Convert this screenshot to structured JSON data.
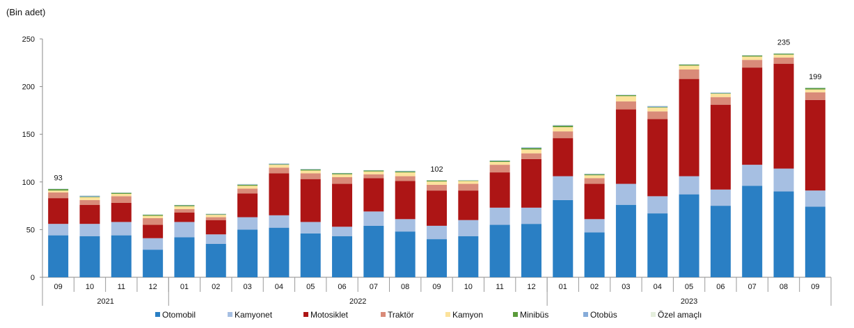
{
  "chart_data": {
    "type": "bar",
    "stacked": true,
    "unit_label": "(Bin adet)",
    "ylim": [
      0,
      250
    ],
    "yticks": [
      0,
      50,
      100,
      150,
      200,
      250
    ],
    "categories": [
      "09",
      "10",
      "11",
      "12",
      "01",
      "02",
      "03",
      "04",
      "05",
      "06",
      "07",
      "08",
      "09",
      "10",
      "11",
      "12",
      "01",
      "02",
      "03",
      "04",
      "05",
      "06",
      "07",
      "08",
      "09"
    ],
    "year_groups": [
      {
        "label": "2021",
        "count": 4
      },
      {
        "label": "2022",
        "count": 12
      },
      {
        "label": "2023",
        "count": 9
      }
    ],
    "series": [
      {
        "name": "Otomobil",
        "color": "#2a7fc4",
        "values": [
          44,
          43,
          44,
          29,
          42,
          35,
          50,
          52,
          46,
          43,
          54,
          48,
          40,
          43,
          55,
          56,
          81,
          47,
          76,
          67,
          87,
          75,
          96,
          90,
          74
        ]
      },
      {
        "name": "Kamyonet",
        "color": "#a6bfe2",
        "values": [
          12,
          13,
          14,
          12,
          16,
          10,
          13,
          13,
          12,
          10,
          15,
          13,
          14,
          17,
          18,
          17,
          25,
          14,
          22,
          18,
          19,
          17,
          22,
          24,
          17
        ]
      },
      {
        "name": "Motosiklet",
        "color": "#ad1515",
        "values": [
          27,
          20,
          20,
          14,
          10,
          15,
          25,
          44,
          45,
          45,
          35,
          40,
          37,
          31,
          37,
          51,
          40,
          37,
          78,
          81,
          102,
          89,
          102,
          110,
          95
        ]
      },
      {
        "name": "Traktör",
        "color": "#d98b79",
        "values": [
          6,
          5,
          7,
          7,
          3.5,
          3,
          5,
          6,
          6,
          7,
          4,
          5,
          6,
          7,
          8,
          6,
          7,
          6,
          8.5,
          8,
          10,
          8,
          8,
          6.5,
          8
        ]
      },
      {
        "name": "Kamyon",
        "color": "#fce29c",
        "values": [
          2,
          3,
          2.5,
          2.5,
          3,
          2.5,
          3,
          3,
          3,
          3,
          3,
          4,
          3.5,
          3,
          3,
          4,
          4.5,
          3,
          5.5,
          4,
          4,
          3.5,
          3.5,
          3,
          3
        ]
      },
      {
        "name": "Minibüs",
        "color": "#5b9b3b",
        "values": [
          1.5,
          0.5,
          1,
          1,
          1,
          0.5,
          1,
          0.5,
          1,
          1,
          1,
          1,
          1,
          0.5,
          1,
          1.5,
          1.5,
          1,
          1,
          0.5,
          1,
          0.5,
          1,
          1,
          1.5
        ]
      },
      {
        "name": "Otobüs",
        "color": "#86acd9",
        "values": [
          0.3,
          1,
          0.3,
          0.3,
          0.3,
          0.5,
          0.5,
          0.7,
          0.5,
          0.3,
          0.3,
          0.5,
          0.3,
          0.3,
          0.5,
          0.7,
          0.5,
          0.5,
          0.3,
          1,
          0.3,
          0.7,
          0.3,
          0.3,
          0.3
        ]
      },
      {
        "name": "Özel amaçlı",
        "color": "#e4eedc",
        "values": [
          0.2,
          0.5,
          0.2,
          0.2,
          0.2,
          0.5,
          0.5,
          0.3,
          0.3,
          0.2,
          0.2,
          0.5,
          0.2,
          0.2,
          0.5,
          0.3,
          0.5,
          0.5,
          0.2,
          0.5,
          0.2,
          0.3,
          0.2,
          0.2,
          0.2
        ]
      }
    ],
    "data_labels": [
      {
        "index": 0,
        "text": "93"
      },
      {
        "index": 12,
        "text": "102"
      },
      {
        "index": 23,
        "text": "235"
      },
      {
        "index": 24,
        "text": "199"
      }
    ],
    "legend_position": "bottom",
    "grid": false
  }
}
